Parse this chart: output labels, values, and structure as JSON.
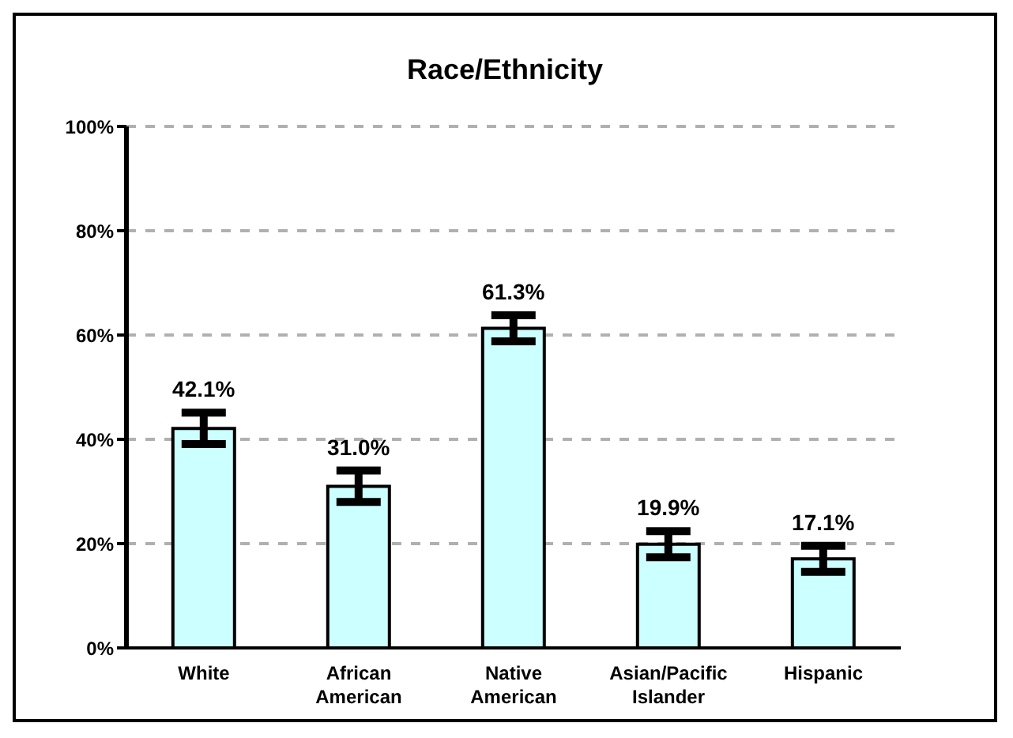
{
  "chart_data": {
    "type": "bar",
    "title": "Race/Ethnicity",
    "categories": [
      "White",
      "African American",
      "Native American",
      "Asian/Pacific Islander",
      "Hispanic"
    ],
    "values": [
      42.1,
      31.0,
      61.3,
      19.9,
      17.1
    ],
    "errors": [
      3,
      3,
      2.5,
      2.5,
      2.5
    ],
    "value_labels": [
      "42.1%",
      "31.0%",
      "61.3%",
      "19.9%",
      "17.1%"
    ],
    "color": "#ccffff",
    "ylim": [
      0,
      100
    ],
    "yticks": [
      {
        "value": 0,
        "label": "0%"
      },
      {
        "value": 20,
        "label": "20%"
      },
      {
        "value": 40,
        "label": "40%"
      },
      {
        "value": 60,
        "label": "60%"
      },
      {
        "value": 80,
        "label": "80%"
      },
      {
        "value": 100,
        "label": "100%"
      }
    ],
    "grid": "y"
  }
}
